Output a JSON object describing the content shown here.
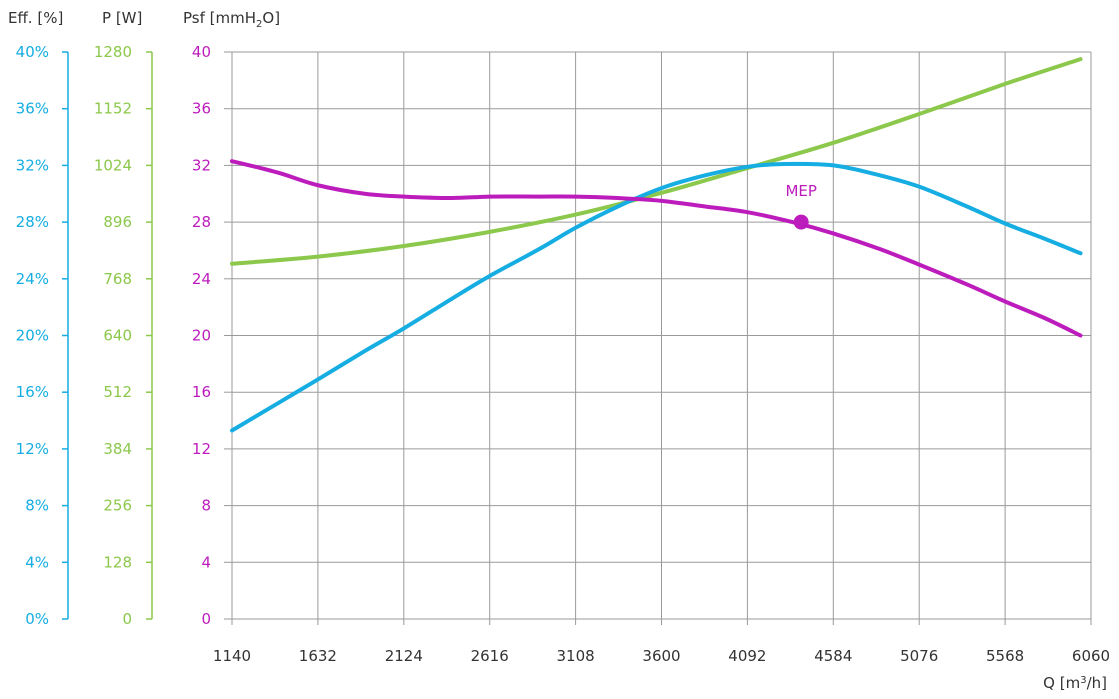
{
  "chart_data": {
    "type": "line",
    "axis_titles": {
      "efficiency": "Eff. [%]",
      "power": "P [W]",
      "pressure_main": "Psf [mmH",
      "pressure_sub": "2",
      "pressure_end": "O]",
      "flow_main": "Q [m",
      "flow_sup": "3",
      "flow_end": "/h]"
    },
    "x_ticks": [
      "1140",
      "1632",
      "2124",
      "2616",
      "3108",
      "3600",
      "4092",
      "4584",
      "5076",
      "5568",
      "6060"
    ],
    "xlim": [
      1140,
      6060
    ],
    "efficiency_ticks": [
      "0%",
      "4%",
      "8%",
      "12%",
      "16%",
      "20%",
      "24%",
      "28%",
      "32%",
      "36%",
      "40%"
    ],
    "power_ticks": [
      "0",
      "128",
      "256",
      "384",
      "512",
      "640",
      "768",
      "896",
      "1024",
      "1152",
      "1280"
    ],
    "pressure_ticks": [
      "0",
      "4",
      "8",
      "12",
      "16",
      "20",
      "24",
      "28",
      "32",
      "36",
      "40"
    ],
    "ylim_pressure": [
      0,
      40
    ],
    "ylim_efficiency": [
      0,
      40
    ],
    "ylim_power": [
      0,
      1280
    ],
    "grid": true,
    "colors": {
      "efficiency": "#16ade2",
      "power": "#8cc84b",
      "pressure": "#bd1cbd",
      "grid": "#9a9a9a",
      "text": "#333333"
    },
    "series": [
      {
        "axis": "pressure",
        "x": [
          1140,
          1400,
          1632,
          1900,
          2124,
          2400,
          2616,
          2900,
          3108,
          3350,
          3600,
          3850,
          4092,
          4350,
          4584,
          4850,
          5076,
          5350,
          5568,
          5800,
          6000
        ],
        "values": [
          32.3,
          31.5,
          30.6,
          30.0,
          29.8,
          29.7,
          29.8,
          29.8,
          29.8,
          29.7,
          29.5,
          29.1,
          28.7,
          28.0,
          27.2,
          26.1,
          25.0,
          23.6,
          22.4,
          21.2,
          20.0
        ]
      },
      {
        "axis": "efficiency",
        "x": [
          1140,
          1400,
          1632,
          1900,
          2124,
          2400,
          2616,
          2900,
          3108,
          3350,
          3600,
          3850,
          4092,
          4300,
          4584,
          4850,
          5076,
          5350,
          5568,
          5800,
          6000
        ],
        "values": [
          13.3,
          15.2,
          16.9,
          18.9,
          20.5,
          22.6,
          24.2,
          26.1,
          27.6,
          29.1,
          30.4,
          31.3,
          31.9,
          32.1,
          32.0,
          31.3,
          30.5,
          29.1,
          27.9,
          26.8,
          25.8
        ]
      },
      {
        "axis": "power",
        "x": [
          1140,
          1632,
          2124,
          2616,
          3108,
          3600,
          4092,
          4584,
          5076,
          5568,
          6000
        ],
        "values": [
          802,
          818,
          842,
          874,
          913,
          962,
          1018,
          1075,
          1140,
          1208,
          1264
        ]
      }
    ],
    "annotations": [
      {
        "text": "MEP",
        "x": 4400,
        "y": 28.0
      }
    ]
  }
}
